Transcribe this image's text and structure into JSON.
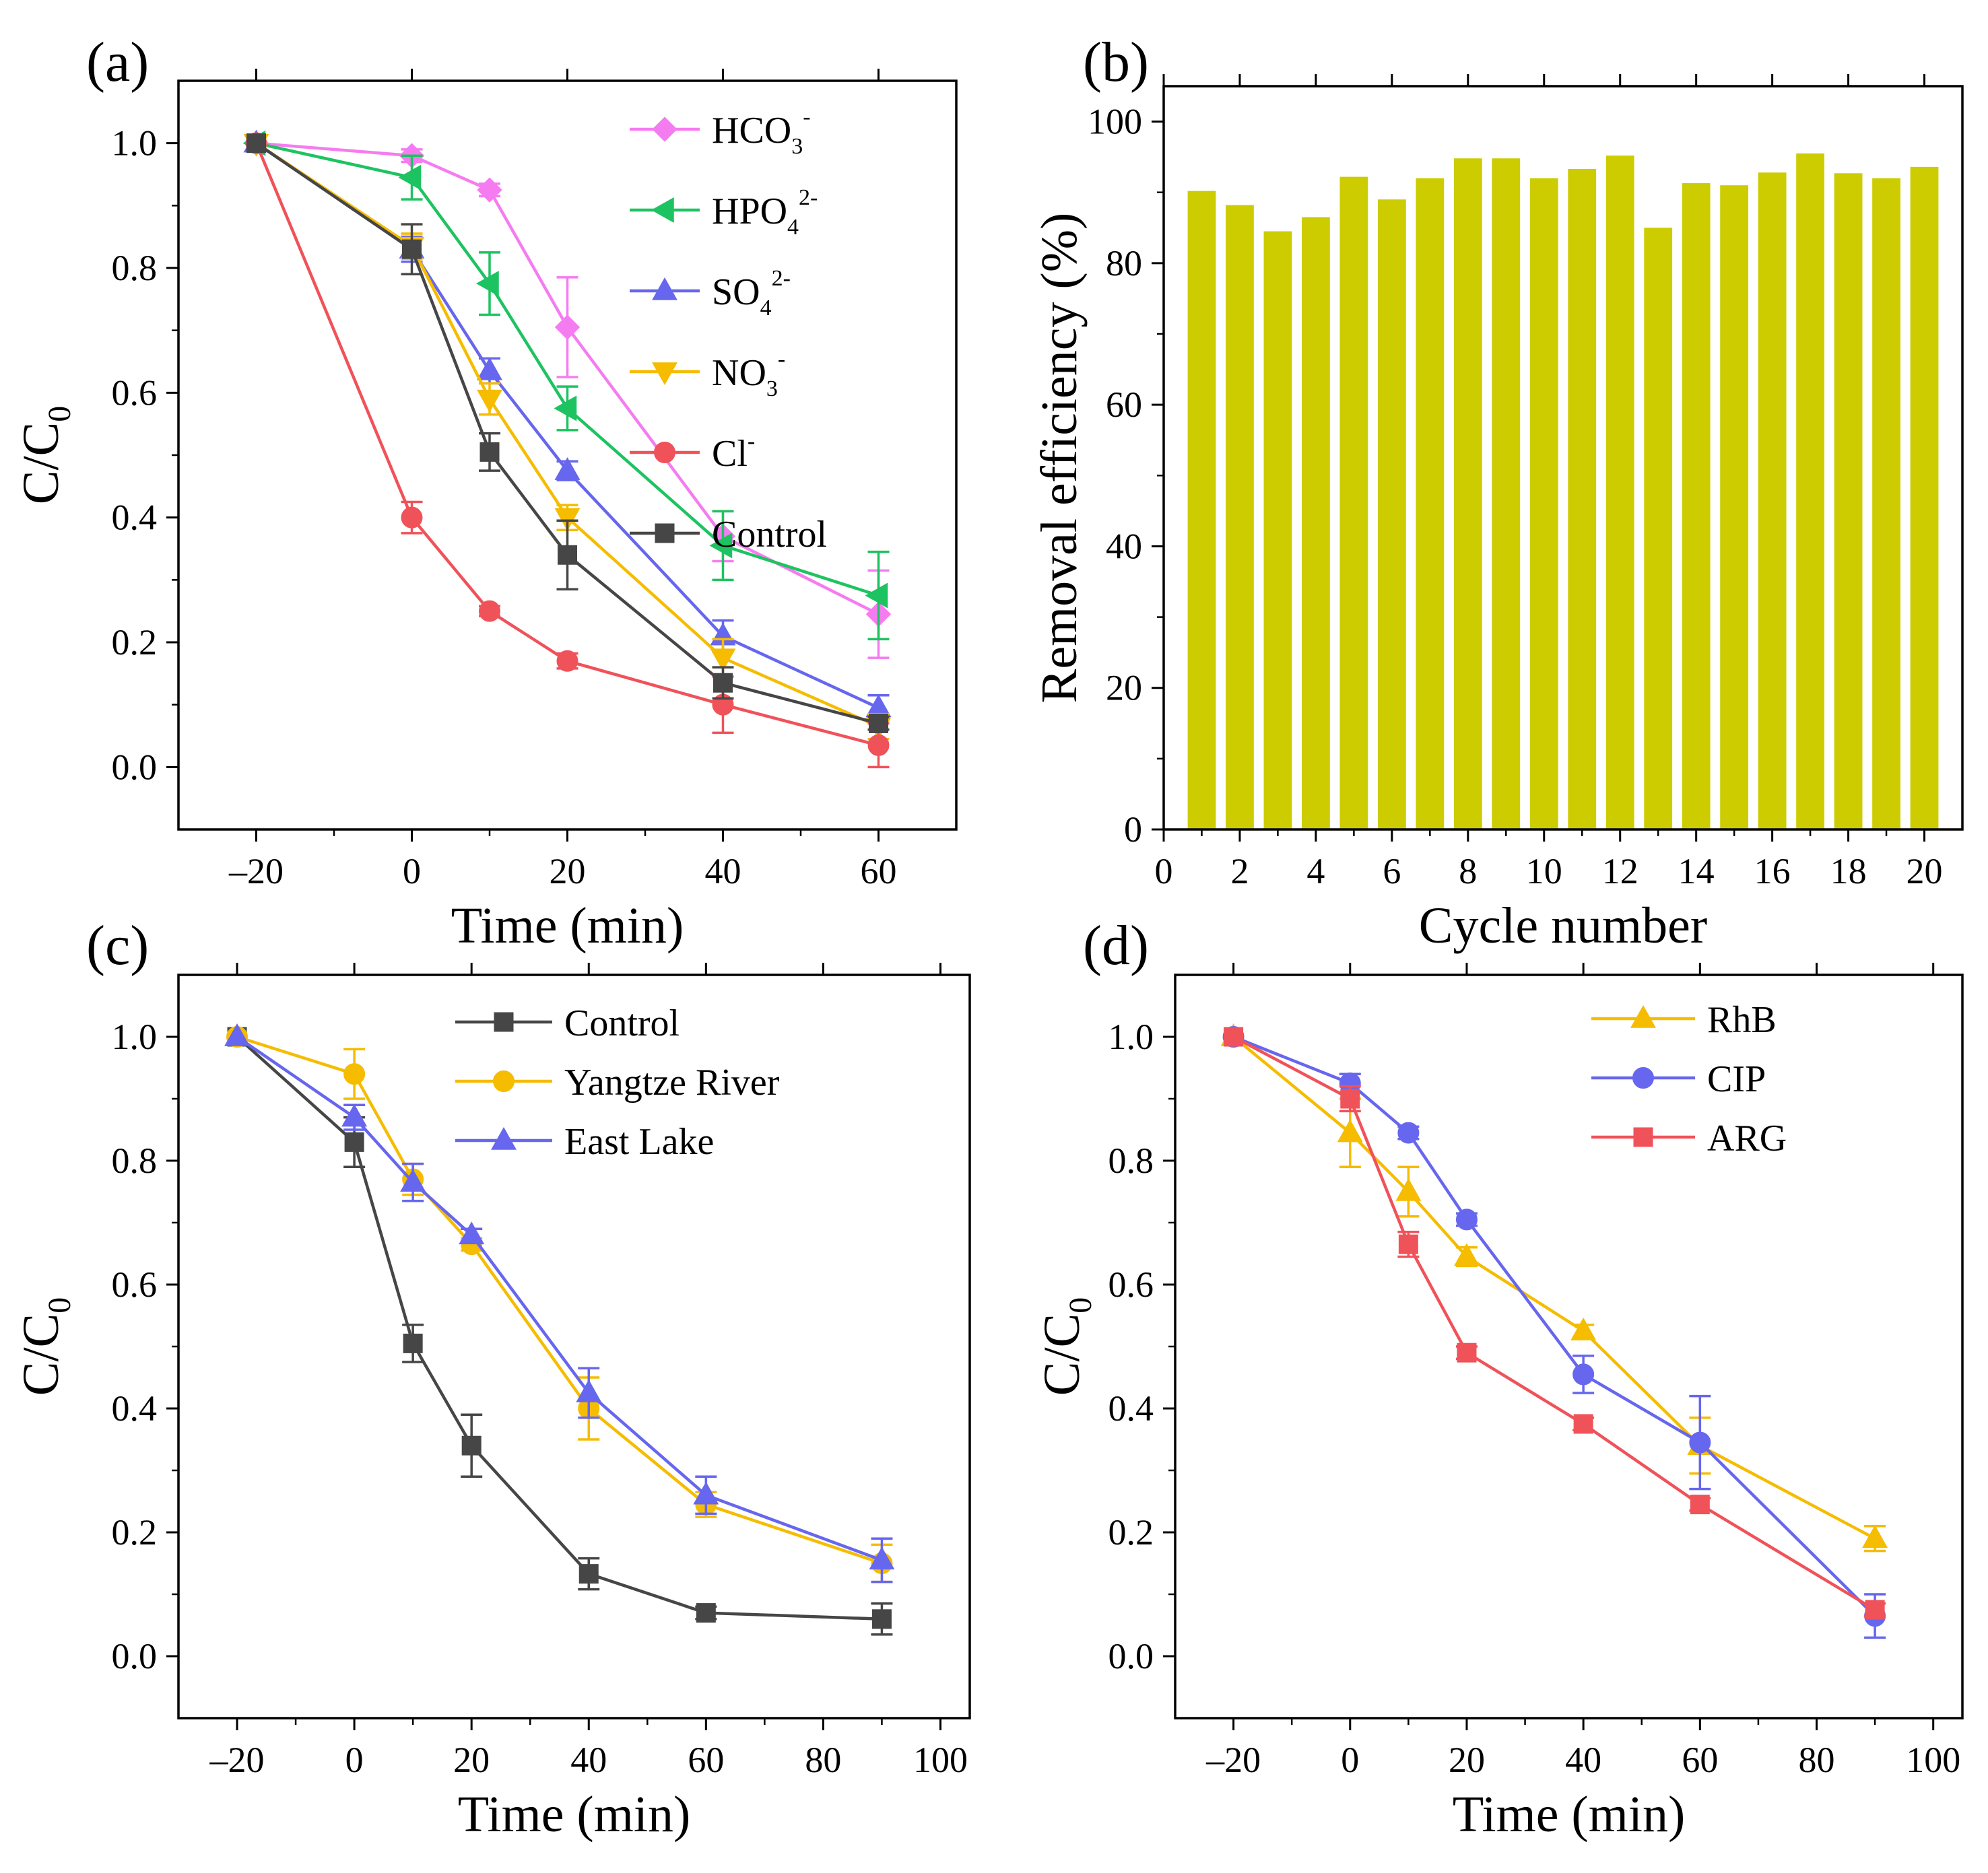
{
  "chart_data": [
    {
      "panel": "(a)",
      "type": "line",
      "xlabel": "Time (min)",
      "ylabel": "C/C",
      "ylabel_sub": "0",
      "xlim": [
        -30,
        70
      ],
      "ylim": [
        -0.1,
        1.1
      ],
      "xticks": [
        -20,
        0,
        20,
        40,
        60
      ],
      "xtick_labels": [
        "–20",
        "0",
        "20",
        "40",
        "60"
      ],
      "yticks": [
        0.0,
        0.2,
        0.4,
        0.6,
        0.8,
        1.0
      ],
      "ytick_labels": [
        "0.0",
        "0.2",
        "0.4",
        "0.6",
        "0.8",
        "1.0"
      ],
      "legend_position": "top-right",
      "series": [
        {
          "name": "HCO",
          "sub": "3",
          "sup": "-",
          "color": "#f57cf0",
          "marker": "diamond",
          "x": [
            -20,
            0,
            10,
            20,
            40,
            60
          ],
          "y": [
            1.0,
            0.98,
            0.925,
            0.705,
            0.37,
            0.245
          ],
          "err": [
            0.0,
            0.01,
            0.01,
            0.08,
            0.04,
            0.07
          ]
        },
        {
          "name": "HPO",
          "sub": "4",
          "sup": "2-",
          "color": "#1ec361",
          "marker": "triangle-left",
          "x": [
            -20,
            0,
            10,
            20,
            40,
            60
          ],
          "y": [
            1.0,
            0.945,
            0.775,
            0.575,
            0.355,
            0.275
          ],
          "err": [
            0.0,
            0.035,
            0.05,
            0.035,
            0.055,
            0.07
          ]
        },
        {
          "name": "SO",
          "sub": "4",
          "sup": "2-",
          "color": "#6666ee",
          "marker": "triangle-up",
          "x": [
            -20,
            0,
            10,
            20,
            40,
            60
          ],
          "y": [
            1.0,
            0.83,
            0.635,
            0.475,
            0.21,
            0.095
          ],
          "err": [
            0.0,
            0.02,
            0.02,
            0.015,
            0.025,
            0.02
          ]
        },
        {
          "name": "NO",
          "sub": "3",
          "sup": "-",
          "color": "#f5bc00",
          "marker": "triangle-down",
          "x": [
            -20,
            0,
            10,
            20,
            40,
            60
          ],
          "y": [
            1.0,
            0.835,
            0.59,
            0.4,
            0.175,
            0.065
          ],
          "err": [
            0.0,
            0.02,
            0.025,
            0.02,
            0.03,
            0.02
          ]
        },
        {
          "name": "Cl",
          "sub": "",
          "sup": "-",
          "color": "#f0525a",
          "marker": "circle",
          "x": [
            -20,
            0,
            10,
            20,
            40,
            60
          ],
          "y": [
            1.0,
            0.4,
            0.25,
            0.17,
            0.1,
            0.035
          ],
          "err": [
            0.0,
            0.025,
            0.008,
            0.012,
            0.045,
            0.035
          ]
        },
        {
          "name": "Control",
          "sub": "",
          "sup": "",
          "color": "#464646",
          "marker": "square",
          "x": [
            -20,
            0,
            10,
            20,
            40,
            60
          ],
          "y": [
            1.0,
            0.83,
            0.505,
            0.34,
            0.135,
            0.07
          ],
          "err": [
            0.0,
            0.04,
            0.03,
            0.055,
            0.025,
            0.01
          ]
        }
      ]
    },
    {
      "panel": "(b)",
      "type": "bar",
      "xlabel": "Cycle number",
      "ylabel": "Removal efficiency (%)",
      "xlim": [
        0,
        21
      ],
      "ylim": [
        0,
        105
      ],
      "xticks": [
        0,
        2,
        4,
        6,
        8,
        10,
        12,
        14,
        16,
        18,
        20
      ],
      "xtick_labels": [
        "0",
        "2",
        "4",
        "6",
        "8",
        "10",
        "12",
        "14",
        "16",
        "18",
        "20"
      ],
      "yticks": [
        0,
        20,
        40,
        60,
        80,
        100
      ],
      "ytick_labels": [
        "0",
        "20",
        "40",
        "60",
        "80",
        "100"
      ],
      "bar_color": "#cccc00",
      "categories": [
        1,
        2,
        3,
        4,
        5,
        6,
        7,
        8,
        9,
        10,
        11,
        12,
        13,
        14,
        15,
        16,
        17,
        18,
        19,
        20
      ],
      "values": [
        90.2,
        88.2,
        84.5,
        86.5,
        92.2,
        89.0,
        92.0,
        94.8,
        94.8,
        92.0,
        93.3,
        95.2,
        85.0,
        91.3,
        91.0,
        92.8,
        95.5,
        92.7,
        92.0,
        93.6
      ]
    },
    {
      "panel": "(c)",
      "type": "line",
      "xlabel": "Time (min)",
      "ylabel": "C/C",
      "ylabel_sub": "0",
      "xlim": [
        -30,
        105
      ],
      "ylim": [
        -0.1,
        1.1
      ],
      "xticks": [
        -20,
        0,
        20,
        40,
        60,
        80,
        100
      ],
      "xtick_labels": [
        "–20",
        "0",
        "20",
        "40",
        "60",
        "80",
        "100"
      ],
      "yticks": [
        0.0,
        0.2,
        0.4,
        0.6,
        0.8,
        1.0
      ],
      "ytick_labels": [
        "0.0",
        "0.2",
        "0.4",
        "0.6",
        "0.8",
        "1.0"
      ],
      "legend_position": "top-right",
      "series": [
        {
          "name": "Control",
          "sub": "",
          "sup": "",
          "color": "#464646",
          "marker": "square",
          "x": [
            -20,
            0,
            10,
            20,
            40,
            60,
            90
          ],
          "y": [
            1.0,
            0.83,
            0.505,
            0.34,
            0.133,
            0.07,
            0.06
          ],
          "err": [
            0.0,
            0.04,
            0.03,
            0.05,
            0.025,
            0.01,
            0.025
          ]
        },
        {
          "name": "Yangtze River",
          "sub": "",
          "sup": "",
          "color": "#f5bc00",
          "marker": "circle",
          "x": [
            -20,
            0,
            10,
            20,
            40,
            60,
            90
          ],
          "y": [
            1.0,
            0.94,
            0.77,
            0.665,
            0.4,
            0.245,
            0.15
          ],
          "err": [
            0.0,
            0.04,
            0.025,
            0.01,
            0.05,
            0.02,
            0.03
          ]
        },
        {
          "name": "East Lake",
          "sub": "",
          "sup": "",
          "color": "#6666ee",
          "marker": "triangle-up",
          "x": [
            -20,
            0,
            10,
            20,
            40,
            60,
            90
          ],
          "y": [
            1.0,
            0.87,
            0.765,
            0.68,
            0.425,
            0.26,
            0.155
          ],
          "err": [
            0.0,
            0.02,
            0.03,
            0.01,
            0.04,
            0.03,
            0.035
          ]
        }
      ]
    },
    {
      "panel": "(d)",
      "type": "line",
      "xlabel": "Time (min)",
      "ylabel": "C/C",
      "ylabel_sub": "0",
      "xlim": [
        -30,
        105
      ],
      "ylim": [
        -0.1,
        1.1
      ],
      "xticks": [
        -20,
        0,
        20,
        40,
        60,
        80,
        100
      ],
      "xtick_labels": [
        "–20",
        "0",
        "20",
        "40",
        "60",
        "80",
        "100"
      ],
      "yticks": [
        0.0,
        0.2,
        0.4,
        0.6,
        0.8,
        1.0
      ],
      "ytick_labels": [
        "0.0",
        "0.2",
        "0.4",
        "0.6",
        "0.8",
        "1.0"
      ],
      "legend_position": "top-right",
      "series": [
        {
          "name": "RhB",
          "sub": "",
          "sup": "",
          "color": "#f5bc00",
          "marker": "triangle-up",
          "x": [
            -20,
            0,
            10,
            20,
            40,
            60,
            90
          ],
          "y": [
            1.0,
            0.845,
            0.75,
            0.645,
            0.525,
            0.34,
            0.19
          ],
          "err": [
            0.0,
            0.055,
            0.04,
            0.015,
            0.01,
            0.045,
            0.02
          ]
        },
        {
          "name": "CIP",
          "sub": "",
          "sup": "",
          "color": "#6666ee",
          "marker": "circle",
          "x": [
            -20,
            0,
            10,
            20,
            40,
            60,
            90
          ],
          "y": [
            1.0,
            0.925,
            0.845,
            0.705,
            0.455,
            0.345,
            0.065
          ],
          "err": [
            0.0,
            0.015,
            0.01,
            0.01,
            0.03,
            0.075,
            0.035
          ]
        },
        {
          "name": "ARG",
          "sub": "",
          "sup": "",
          "color": "#f0525a",
          "marker": "square",
          "x": [
            -20,
            0,
            10,
            20,
            40,
            60,
            90
          ],
          "y": [
            1.0,
            0.9,
            0.665,
            0.49,
            0.375,
            0.245,
            0.075
          ],
          "err": [
            0.0,
            0.02,
            0.02,
            0.01,
            0.01,
            0.01,
            0.01
          ]
        }
      ]
    }
  ]
}
